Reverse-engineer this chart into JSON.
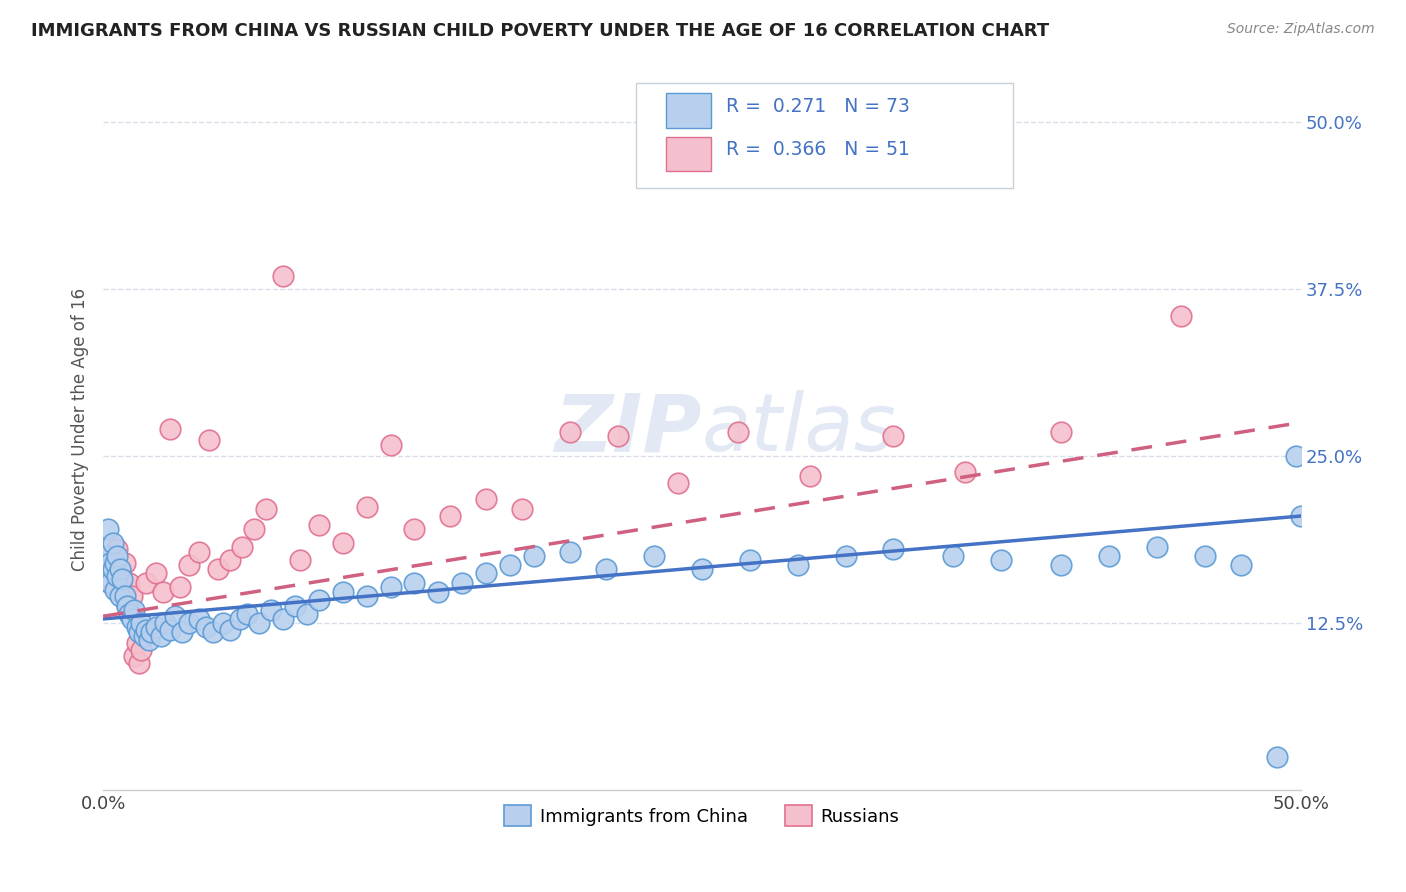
{
  "title": "IMMIGRANTS FROM CHINA VS RUSSIAN CHILD POVERTY UNDER THE AGE OF 16 CORRELATION CHART",
  "source": "Source: ZipAtlas.com",
  "ylabel": "Child Poverty Under the Age of 16",
  "legend_label1": "Immigrants from China",
  "legend_label2": "Russians",
  "r1": "0.271",
  "n1": "73",
  "r2": "0.366",
  "n2": "51",
  "color_china_fill": "#b8d0ee",
  "color_china_edge": "#5b9bd5",
  "color_russia_fill": "#f5c0cd",
  "color_russia_edge": "#e07090",
  "color_china_line": "#4472c4",
  "color_russia_line": "#d06080",
  "color_stats": "#4472c4",
  "background_color": "#ffffff",
  "grid_color": "#d8dfe8",
  "ytick_color": "#4472c4",
  "xmin": 0.0,
  "xmax": 0.5,
  "ymin": 0.0,
  "ymax": 0.54,
  "china_x": [
    0.001,
    0.002,
    0.002,
    0.003,
    0.003,
    0.004,
    0.004,
    0.005,
    0.005,
    0.006,
    0.006,
    0.007,
    0.007,
    0.008,
    0.009,
    0.01,
    0.011,
    0.012,
    0.013,
    0.014,
    0.015,
    0.016,
    0.017,
    0.018,
    0.019,
    0.02,
    0.022,
    0.024,
    0.026,
    0.028,
    0.03,
    0.033,
    0.036,
    0.04,
    0.043,
    0.046,
    0.05,
    0.053,
    0.057,
    0.06,
    0.065,
    0.07,
    0.075,
    0.08,
    0.085,
    0.09,
    0.1,
    0.11,
    0.12,
    0.13,
    0.14,
    0.15,
    0.16,
    0.17,
    0.18,
    0.195,
    0.21,
    0.23,
    0.25,
    0.27,
    0.29,
    0.31,
    0.33,
    0.355,
    0.375,
    0.4,
    0.42,
    0.44,
    0.46,
    0.475,
    0.49,
    0.498,
    0.5
  ],
  "china_y": [
    0.175,
    0.16,
    0.195,
    0.155,
    0.17,
    0.165,
    0.185,
    0.15,
    0.17,
    0.16,
    0.175,
    0.145,
    0.165,
    0.158,
    0.145,
    0.138,
    0.132,
    0.128,
    0.135,
    0.122,
    0.118,
    0.125,
    0.115,
    0.12,
    0.112,
    0.118,
    0.122,
    0.115,
    0.125,
    0.12,
    0.13,
    0.118,
    0.125,
    0.128,
    0.122,
    0.118,
    0.125,
    0.12,
    0.128,
    0.132,
    0.125,
    0.135,
    0.128,
    0.138,
    0.132,
    0.142,
    0.148,
    0.145,
    0.152,
    0.155,
    0.148,
    0.155,
    0.162,
    0.168,
    0.175,
    0.178,
    0.165,
    0.175,
    0.165,
    0.172,
    0.168,
    0.175,
    0.18,
    0.175,
    0.172,
    0.168,
    0.175,
    0.182,
    0.175,
    0.168,
    0.025,
    0.25,
    0.205
  ],
  "russia_x": [
    0.001,
    0.002,
    0.003,
    0.003,
    0.004,
    0.005,
    0.006,
    0.006,
    0.007,
    0.008,
    0.009,
    0.01,
    0.011,
    0.012,
    0.013,
    0.014,
    0.015,
    0.016,
    0.018,
    0.02,
    0.022,
    0.025,
    0.028,
    0.032,
    0.036,
    0.04,
    0.044,
    0.048,
    0.053,
    0.058,
    0.063,
    0.068,
    0.075,
    0.082,
    0.09,
    0.1,
    0.11,
    0.12,
    0.13,
    0.145,
    0.16,
    0.175,
    0.195,
    0.215,
    0.24,
    0.265,
    0.295,
    0.33,
    0.36,
    0.4,
    0.45
  ],
  "russia_y": [
    0.16,
    0.17,
    0.155,
    0.165,
    0.175,
    0.16,
    0.155,
    0.18,
    0.165,
    0.15,
    0.17,
    0.138,
    0.155,
    0.145,
    0.1,
    0.11,
    0.095,
    0.105,
    0.155,
    0.12,
    0.162,
    0.148,
    0.27,
    0.152,
    0.168,
    0.178,
    0.262,
    0.165,
    0.172,
    0.182,
    0.195,
    0.21,
    0.385,
    0.172,
    0.198,
    0.185,
    0.212,
    0.258,
    0.195,
    0.205,
    0.218,
    0.21,
    0.268,
    0.265,
    0.23,
    0.268,
    0.235,
    0.265,
    0.238,
    0.268,
    0.355
  ],
  "china_line_x0": 0.0,
  "china_line_x1": 0.5,
  "china_line_y0": 0.128,
  "china_line_y1": 0.205,
  "russia_line_x0": 0.0,
  "russia_line_x1": 0.5,
  "russia_line_y0": 0.13,
  "russia_line_y1": 0.275
}
